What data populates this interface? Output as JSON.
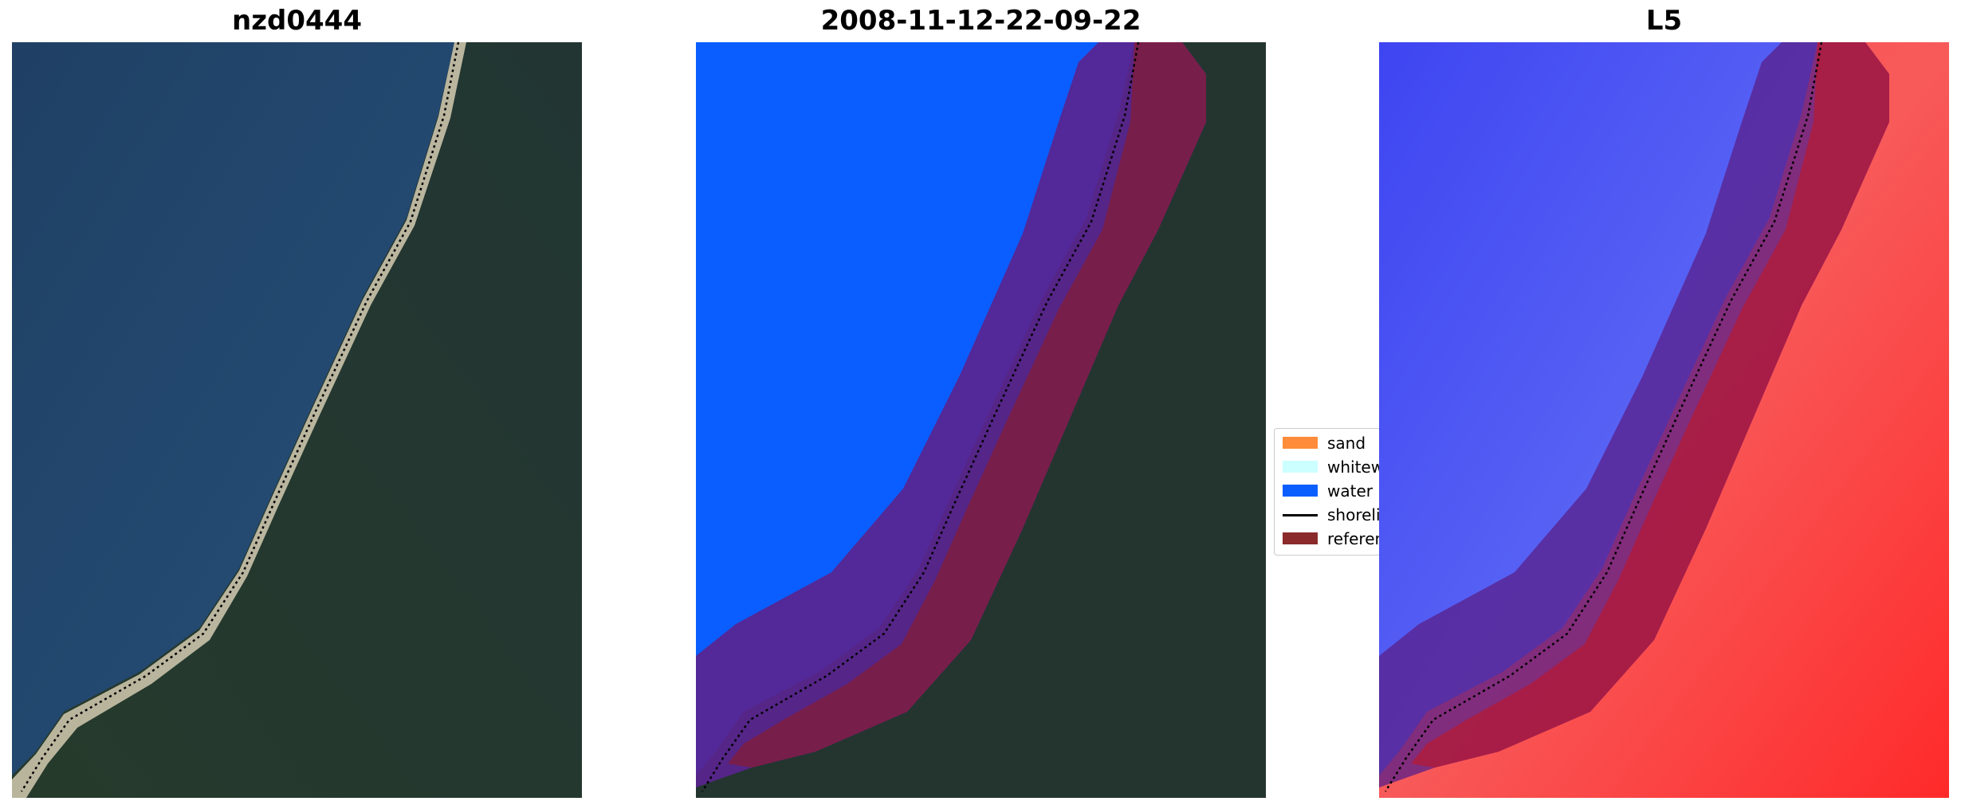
{
  "panels": [
    {
      "title": "nzd0444"
    },
    {
      "title": "2008-11-12-22-09-22"
    },
    {
      "title": "L5"
    }
  ],
  "legend": {
    "items": [
      {
        "label": "sand",
        "color": "#ff8c3a",
        "kind": "patch"
      },
      {
        "label": "whitewater",
        "color": "#ccffff",
        "kind": "patch"
      },
      {
        "label": "water",
        "color": "#0a5eff",
        "kind": "patch"
      },
      {
        "label": "shoreline",
        "color": "#000000",
        "kind": "line"
      },
      {
        "label": "reference shoreline buffer",
        "color": "#8b2a2a",
        "kind": "patch"
      }
    ]
  },
  "colors": {
    "ocean": "#1e4060",
    "land": "#233528",
    "beach": "#d8d0b8",
    "water_class": "#0a5eff",
    "buffer": "#5a248f",
    "buffer_land": "#7a1e45",
    "index_water": "#3b42f0",
    "index_land": "#f03a3a"
  }
}
